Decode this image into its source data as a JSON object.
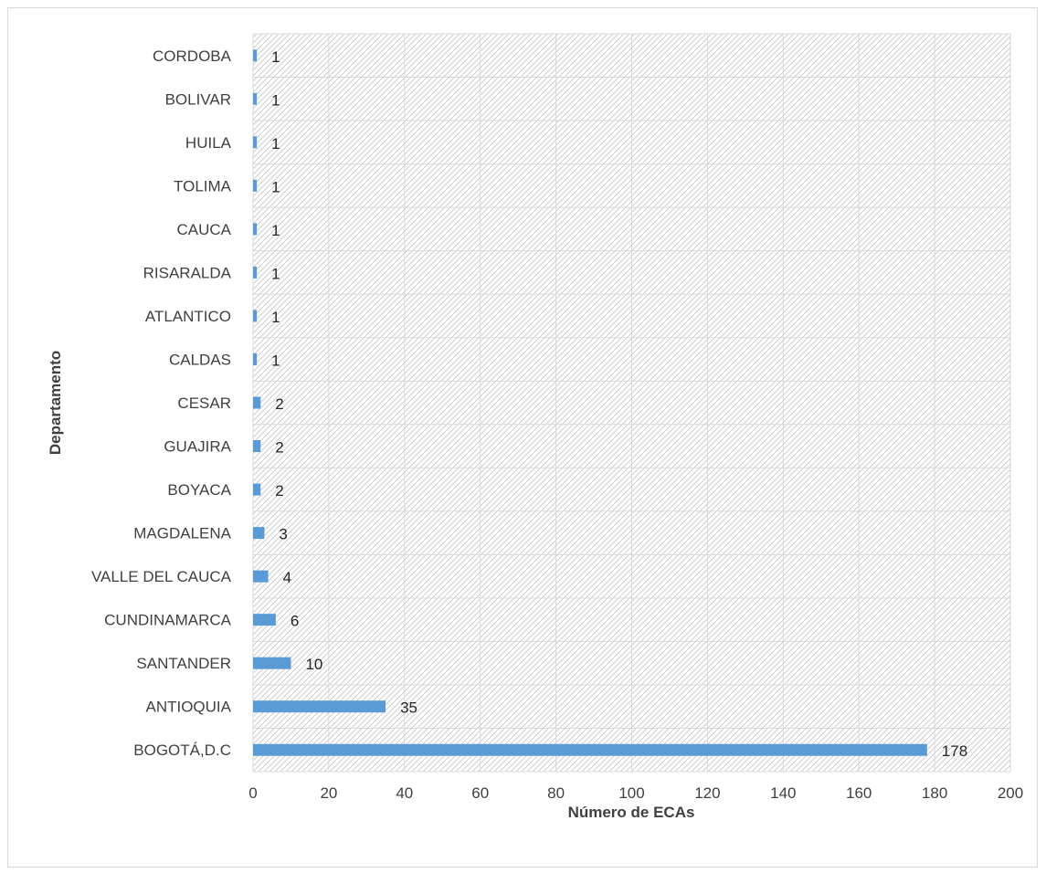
{
  "chart_data": {
    "type": "bar",
    "orientation": "horizontal",
    "categories": [
      "CORDOBA",
      "BOLIVAR",
      "HUILA",
      "TOLIMA",
      "CAUCA",
      "RISARALDA",
      "ATLANTICO",
      "CALDAS",
      "CESAR",
      "GUAJIRA",
      "BOYACA",
      "MAGDALENA",
      "VALLE DEL CAUCA",
      "CUNDINAMARCA",
      "SANTANDER",
      "ANTIOQUIA",
      "BOGOTÁ,D.C"
    ],
    "values": [
      1,
      1,
      1,
      1,
      1,
      1,
      1,
      1,
      2,
      2,
      2,
      3,
      4,
      6,
      10,
      35,
      178
    ],
    "title": "",
    "xlabel": "Número de ECAs",
    "ylabel": "Departamento",
    "xlim": [
      0,
      200
    ],
    "xticks": [
      0,
      20,
      40,
      60,
      80,
      100,
      120,
      140,
      160,
      180,
      200
    ],
    "grid": true,
    "legend": "none",
    "bar_color": "#5b9bd5",
    "plot_background": "diagonal hatch",
    "data_labels": true
  }
}
